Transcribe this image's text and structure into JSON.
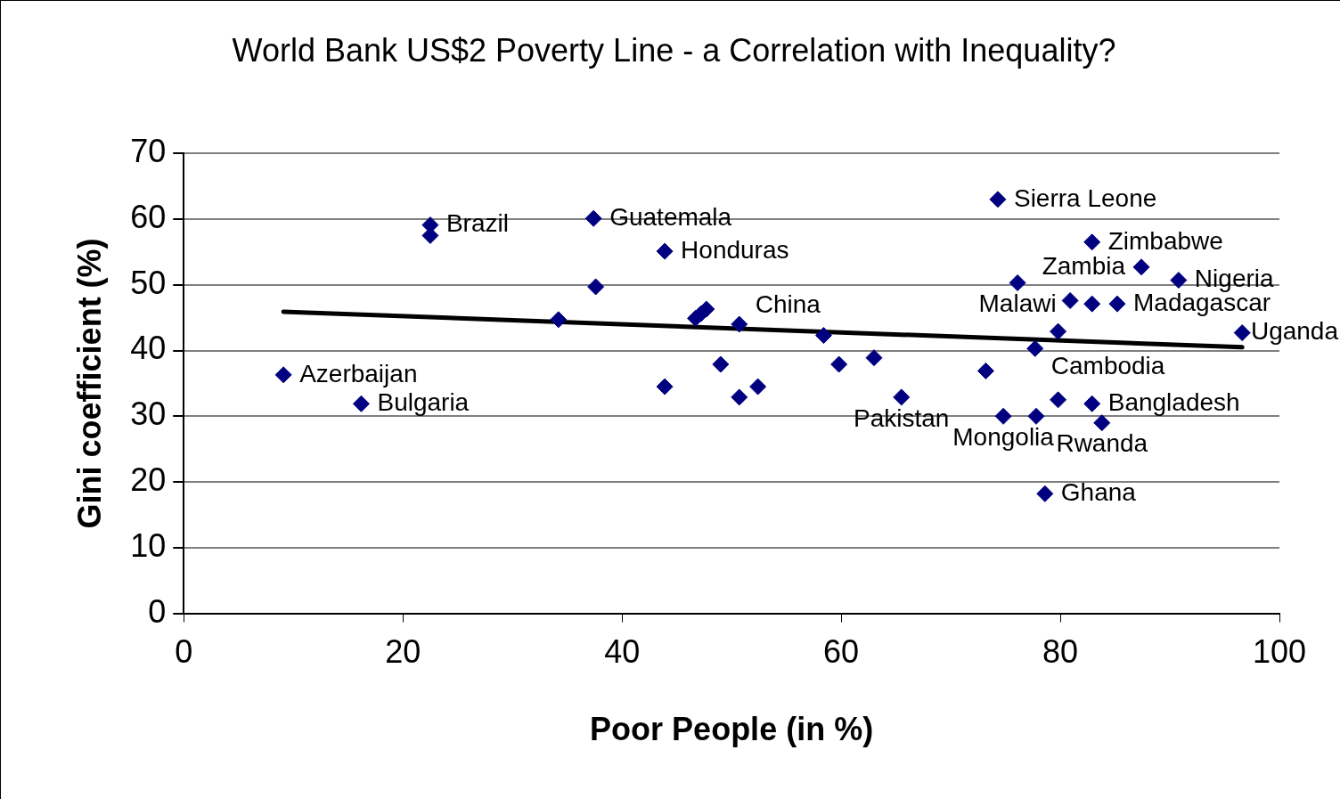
{
  "chart_data": {
    "type": "scatter",
    "title": "World Bank US$2 Poverty Line - a Correlation with Inequality?",
    "xlabel": "Poor People (in %)",
    "ylabel": "Gini coefficient (%)",
    "series": [
      {
        "color": "#000080",
        "marker": "diamond",
        "x": [
          9.1,
          16.2,
          22.5,
          22.5,
          37.4,
          37.6,
          43.9,
          34.2,
          46.7,
          47.2,
          47.7,
          50.7,
          58.4,
          43.9,
          49.0,
          50.7,
          52.4,
          59.8,
          63.0,
          65.5,
          73.2,
          74.3,
          82.9,
          87.4,
          90.8,
          76.1,
          80.9,
          82.9,
          85.2,
          79.8,
          77.7,
          96.6,
          74.8,
          77.8,
          79.8,
          82.9,
          83.8,
          78.6
        ],
        "values": [
          36.3,
          31.9,
          59.1,
          57.5,
          60.1,
          49.7,
          55.1,
          44.7,
          44.9,
          45.6,
          46.3,
          44.0,
          42.3,
          34.5,
          37.9,
          32.9,
          34.5,
          37.9,
          38.9,
          32.9,
          36.9,
          63.0,
          56.5,
          52.7,
          50.7,
          50.3,
          47.6,
          47.1,
          47.1,
          42.9,
          40.3,
          42.7,
          30.0,
          30.0,
          32.5,
          31.9,
          29.0,
          18.2
        ]
      },
      {
        "type": "line",
        "color": "#000000",
        "marker": "none",
        "x": [
          9.1,
          96.6
        ],
        "values": [
          45.9,
          40.5
        ]
      }
    ],
    "annotations": [
      {
        "text": "Azerbaijan",
        "x": 9.1,
        "y": 36.3
      },
      {
        "text": "Bulgaria",
        "x": 16.2,
        "y": 31.9
      },
      {
        "text": "Brazil",
        "x": 22.5,
        "y": 59.1
      },
      {
        "text": "Guatemala",
        "x": 37.4,
        "y": 60.1
      },
      {
        "text": "Honduras",
        "x": 43.9,
        "y": 55.1
      },
      {
        "text": "China",
        "x": 50.7,
        "y": 44.0
      },
      {
        "text": "Sierra Leone",
        "x": 74.3,
        "y": 63.0
      },
      {
        "text": "Zimbabwe",
        "x": 82.9,
        "y": 56.5
      },
      {
        "text": "Zambia",
        "x": 87.4,
        "y": 52.7
      },
      {
        "text": "Nigeria",
        "x": 90.8,
        "y": 50.7
      },
      {
        "text": "Malawi",
        "x": 76.1,
        "y": 50.3
      },
      {
        "text": "Madagascar",
        "x": 85.2,
        "y": 47.1
      },
      {
        "text": "Uganda",
        "x": 96.6,
        "y": 42.7
      },
      {
        "text": "Cambodia",
        "x": 77.7,
        "y": 40.3
      },
      {
        "text": "Pakistan",
        "x": 65.5,
        "y": 32.9
      },
      {
        "text": "Bangladesh",
        "x": 82.9,
        "y": 31.9
      },
      {
        "text": "Rwanda",
        "x": 83.8,
        "y": 29.0
      },
      {
        "text": "Mongolia",
        "x": 74.8,
        "y": 30.0
      },
      {
        "text": "Ghana",
        "x": 78.6,
        "y": 18.2
      }
    ],
    "xlim": [
      0,
      100
    ],
    "xticks": [
      0,
      20,
      40,
      60,
      80,
      100
    ],
    "ylim": [
      0,
      70
    ],
    "yticks": [
      0,
      10,
      20,
      30,
      40,
      50,
      60,
      70
    ],
    "grid": "y",
    "legend": false
  }
}
